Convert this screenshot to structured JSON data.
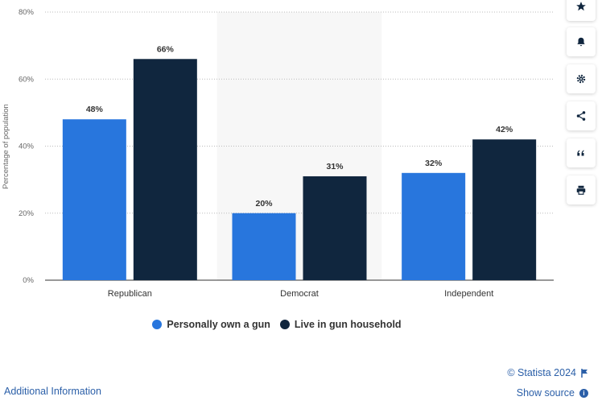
{
  "chart_data": {
    "type": "bar",
    "categories": [
      "Republican",
      "Democrat",
      "Independent"
    ],
    "series": [
      {
        "name": "Personally own a gun",
        "values": [
          48,
          20,
          32
        ],
        "labels": [
          "48%",
          "20%",
          "32%"
        ],
        "color": "#2876dd"
      },
      {
        "name": "Live in gun household",
        "values": [
          66,
          31,
          42
        ],
        "labels": [
          "66%",
          "31%",
          "42%"
        ],
        "color": "#10263e"
      }
    ],
    "ylabel": "Percentage of population",
    "ylim": [
      0,
      80
    ],
    "yticks": [
      0,
      20,
      40,
      60,
      80
    ],
    "ytick_labels": [
      "0%",
      "20%",
      "40%",
      "60%",
      "80%"
    ],
    "grid": true,
    "highlighted_category": "Democrat",
    "legend_position": "bottom"
  },
  "legend": {
    "items": [
      {
        "label": "Personally own a gun",
        "color": "#2876dd"
      },
      {
        "label": "Live in gun household",
        "color": "#10263e"
      }
    ]
  },
  "sidebar": {
    "buttons": [
      {
        "icon": "star-icon",
        "name": "favorite-button"
      },
      {
        "icon": "bell-icon",
        "name": "notification-button"
      },
      {
        "icon": "gear-icon",
        "name": "settings-button"
      },
      {
        "icon": "share-icon",
        "name": "share-button"
      },
      {
        "icon": "quote-icon",
        "name": "cite-button"
      },
      {
        "icon": "print-icon",
        "name": "print-button"
      }
    ]
  },
  "footer": {
    "copyright": "© Statista 2024",
    "additional_info": "Additional Information",
    "show_source": "Show source"
  }
}
